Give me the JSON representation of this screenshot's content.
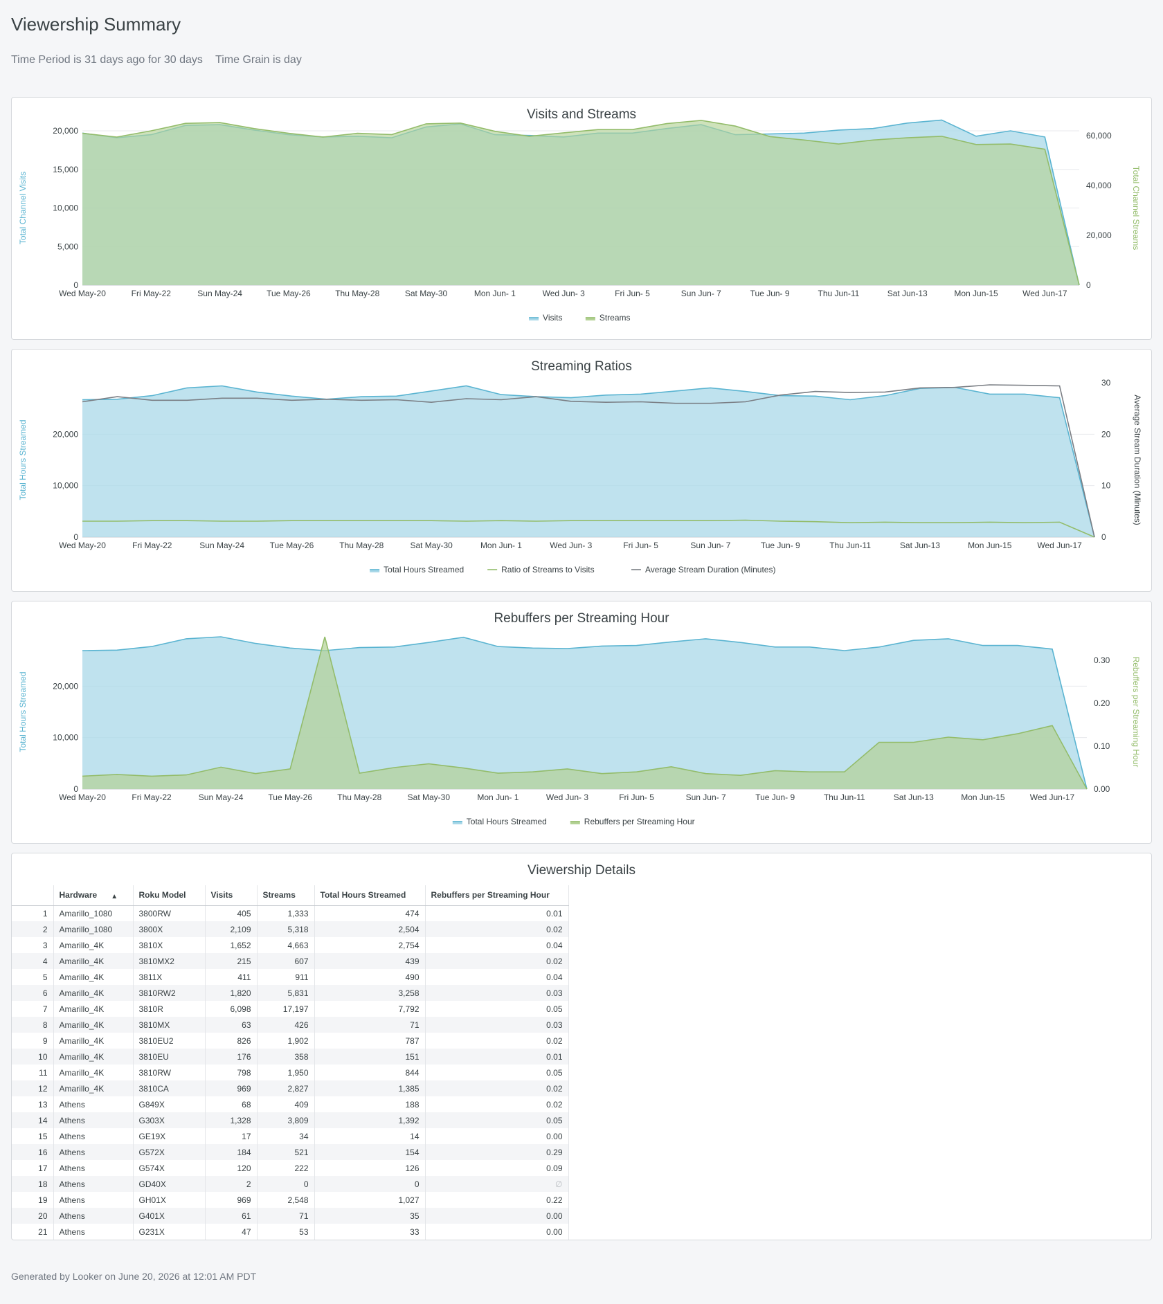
{
  "page": {
    "title": "Viewership Summary",
    "filters": [
      "Time Period is 31 days ago for 30 days",
      "Time Grain is day"
    ],
    "footer": "Generated by Looker on June 20, 2026 at 12:01 AM PDT"
  },
  "colors": {
    "blue": "#5ab4d1",
    "blue_fill": "#a9d8e8",
    "green": "#93bc6a",
    "green_fill": "#b4d296",
    "gray": "#7a7e84"
  },
  "chart_data": [
    {
      "type": "area",
      "title": "Visits and Streams",
      "x": [
        "Wed May-20",
        "Thu May-21",
        "Fri May-22",
        "Sat May-23",
        "Sun May-24",
        "Mon May-25",
        "Tue May-26",
        "Wed May-27",
        "Thu May-28",
        "Fri May-29",
        "Sat May-30",
        "Sun May-31",
        "Mon Jun- 1",
        "Tue Jun- 2",
        "Wed Jun- 3",
        "Thu Jun- 4",
        "Fri Jun- 5",
        "Sat Jun- 6",
        "Sun Jun- 7",
        "Mon Jun- 8",
        "Tue Jun- 9",
        "Wed Jun-10",
        "Thu Jun-11",
        "Fri Jun-12",
        "Sat Jun-13",
        "Sun Jun-14",
        "Mon Jun-15",
        "Tue Jun-16",
        "Wed Jun-17",
        "Thu Jun-18"
      ],
      "x_tick_labels": [
        "Wed May-20",
        "Fri May-22",
        "Sun May-24",
        "Tue May-26",
        "Thu May-28",
        "Sat May-30",
        "Mon Jun- 1",
        "Wed Jun- 3",
        "Fri Jun- 5",
        "Sun Jun- 7",
        "Tue Jun- 9",
        "Thu Jun-11",
        "Sat Jun-13",
        "Mon Jun-15",
        "Wed Jun-17"
      ],
      "ylabel": "Total Channel Visits",
      "ylabel2": "Total Channel Streams",
      "ylim": [
        0,
        20000
      ],
      "y_ticks": [
        0,
        5000,
        10000,
        15000,
        20000
      ],
      "y_tick_labels": [
        "0",
        "5,000",
        "10,000",
        "15,000",
        "20,000"
      ],
      "y2lim": [
        0,
        62000
      ],
      "y2_ticks": [
        0,
        20000,
        40000,
        60000
      ],
      "y2_tick_labels": [
        "0",
        "20,000",
        "40,000",
        "60,000"
      ],
      "legend": "bottom",
      "series": [
        {
          "name": "Visits",
          "axis": "left",
          "values": [
            19700,
            19100,
            19500,
            20700,
            20800,
            20100,
            19500,
            19200,
            19300,
            19100,
            20500,
            20900,
            19500,
            19400,
            19200,
            19700,
            19700,
            20300,
            20800,
            19500,
            19600,
            19700,
            20100,
            20300,
            21000,
            21400,
            19300,
            20000,
            19200,
            0
          ]
        },
        {
          "name": "Streams",
          "axis": "right",
          "values": [
            61000,
            59500,
            62000,
            65000,
            65300,
            62900,
            61000,
            59500,
            61000,
            60500,
            64800,
            65100,
            61800,
            59800,
            61200,
            62500,
            62500,
            64900,
            66200,
            63900,
            59700,
            58300,
            56700,
            58300,
            59200,
            59800,
            56500,
            56700,
            54600,
            0
          ]
        }
      ]
    },
    {
      "type": "area",
      "title": "Streaming Ratios",
      "x_tick_labels": [
        "Wed May-20",
        "Fri May-22",
        "Sun May-24",
        "Tue May-26",
        "Thu May-28",
        "Sat May-30",
        "Mon Jun- 1",
        "Wed Jun- 3",
        "Fri Jun- 5",
        "Sun Jun- 7",
        "Tue Jun- 9",
        "Thu Jun-11",
        "Sat Jun-13",
        "Mon Jun-15",
        "Wed Jun-17"
      ],
      "ylabel": "Total Hours Streamed",
      "ylabel2": "Average Stream Duration (Minutes)",
      "ylim": [
        0,
        30000
      ],
      "y_ticks": [
        0,
        10000,
        20000
      ],
      "y_tick_labels": [
        "0",
        "10,000",
        "20,000"
      ],
      "y2lim": [
        0,
        30
      ],
      "y2_ticks": [
        0,
        10,
        20,
        30
      ],
      "y2_tick_labels": [
        "0",
        "10",
        "20",
        "30"
      ],
      "legend": "bottom",
      "series": [
        {
          "name": "Total Hours Streamed",
          "axis": "left",
          "values": [
            26700,
            26800,
            27500,
            29000,
            29400,
            28200,
            27400,
            26800,
            27300,
            27400,
            28400,
            29400,
            27700,
            27300,
            27100,
            27600,
            27800,
            28400,
            29000,
            28300,
            27500,
            27400,
            26700,
            27500,
            28900,
            29100,
            27800,
            27800,
            27100,
            0
          ]
        },
        {
          "name": "Ratio of Streams to Visits",
          "axis": "right",
          "values": [
            3.1,
            3.1,
            3.2,
            3.2,
            3.1,
            3.1,
            3.2,
            3.2,
            3.2,
            3.2,
            3.2,
            3.1,
            3.2,
            3.1,
            3.2,
            3.2,
            3.2,
            3.2,
            3.2,
            3.3,
            3.1,
            3.0,
            2.8,
            2.9,
            2.8,
            2.8,
            2.9,
            2.8,
            2.9,
            0
          ]
        },
        {
          "name": "Average Stream Duration (Minutes)",
          "axis": "right",
          "values": [
            26.3,
            27.3,
            26.6,
            26.6,
            27.0,
            27.0,
            26.6,
            26.8,
            26.6,
            26.7,
            26.2,
            26.9,
            26.7,
            27.3,
            26.4,
            26.2,
            26.3,
            26.0,
            26.0,
            26.3,
            27.6,
            28.3,
            28.1,
            28.2,
            29.0,
            29.1,
            29.6,
            29.5,
            29.4,
            0
          ]
        }
      ]
    },
    {
      "type": "area",
      "title": "Rebuffers per Streaming Hour",
      "x_tick_labels": [
        "Wed May-20",
        "Fri May-22",
        "Sun May-24",
        "Tue May-26",
        "Thu May-28",
        "Sat May-30",
        "Mon Jun- 1",
        "Wed Jun- 3",
        "Fri Jun- 5",
        "Sun Jun- 7",
        "Tue Jun- 9",
        "Thu Jun-11",
        "Sat Jun-13",
        "Mon Jun-15",
        "Wed Jun-17"
      ],
      "ylabel": "Total Hours Streamed",
      "ylabel2": "Rebuffers per Streaming Hour",
      "ylim": [
        0,
        30000
      ],
      "y_ticks": [
        0,
        10000,
        20000
      ],
      "y_tick_labels": [
        "0",
        "10,000",
        "20,000"
      ],
      "y2lim": [
        0,
        0.36
      ],
      "y2_ticks": [
        0,
        0.1,
        0.2,
        0.3
      ],
      "y2_tick_labels": [
        "0.00",
        "0.10",
        "0.20",
        "0.30"
      ],
      "legend": "bottom",
      "series": [
        {
          "name": "Total Hours Streamed",
          "axis": "left",
          "values": [
            26900,
            27000,
            27700,
            29200,
            29600,
            28300,
            27400,
            26900,
            27500,
            27600,
            28500,
            29500,
            27700,
            27400,
            27300,
            27800,
            27900,
            28600,
            29200,
            28500,
            27600,
            27600,
            26900,
            27600,
            28900,
            29200,
            27900,
            27900,
            27200,
            0
          ]
        },
        {
          "name": "Rebuffers per Streaming Hour",
          "axis": "right",
          "values": [
            0.03,
            0.034,
            0.03,
            0.033,
            0.051,
            0.036,
            0.047,
            0.355,
            0.037,
            0.05,
            0.059,
            0.049,
            0.037,
            0.04,
            0.047,
            0.036,
            0.04,
            0.052,
            0.036,
            0.032,
            0.043,
            0.04,
            0.04,
            0.109,
            0.109,
            0.121,
            0.115,
            0.129,
            0.148,
            0
          ]
        }
      ]
    }
  ],
  "table": {
    "title": "Viewership Details",
    "columns": [
      "Hardware",
      "Roku Model",
      "Visits",
      "Streams",
      "Total Hours Streamed",
      "Rebuffers per Streaming Hour"
    ],
    "null_symbol": "∅",
    "rows": [
      [
        "1",
        "Amarillo_1080",
        "3800RW",
        "405",
        "1,333",
        "474",
        "0.01"
      ],
      [
        "2",
        "Amarillo_1080",
        "3800X",
        "2,109",
        "5,318",
        "2,504",
        "0.02"
      ],
      [
        "3",
        "Amarillo_4K",
        "3810X",
        "1,652",
        "4,663",
        "2,754",
        "0.04"
      ],
      [
        "4",
        "Amarillo_4K",
        "3810MX2",
        "215",
        "607",
        "439",
        "0.02"
      ],
      [
        "5",
        "Amarillo_4K",
        "3811X",
        "411",
        "911",
        "490",
        "0.04"
      ],
      [
        "6",
        "Amarillo_4K",
        "3810RW2",
        "1,820",
        "5,831",
        "3,258",
        "0.03"
      ],
      [
        "7",
        "Amarillo_4K",
        "3810R",
        "6,098",
        "17,197",
        "7,792",
        "0.05"
      ],
      [
        "8",
        "Amarillo_4K",
        "3810MX",
        "63",
        "426",
        "71",
        "0.03"
      ],
      [
        "9",
        "Amarillo_4K",
        "3810EU2",
        "826",
        "1,902",
        "787",
        "0.02"
      ],
      [
        "10",
        "Amarillo_4K",
        "3810EU",
        "176",
        "358",
        "151",
        "0.01"
      ],
      [
        "11",
        "Amarillo_4K",
        "3810RW",
        "798",
        "1,950",
        "844",
        "0.05"
      ],
      [
        "12",
        "Amarillo_4K",
        "3810CA",
        "969",
        "2,827",
        "1,385",
        "0.02"
      ],
      [
        "13",
        "Athens",
        "G849X",
        "68",
        "409",
        "188",
        "0.02"
      ],
      [
        "14",
        "Athens",
        "G303X",
        "1,328",
        "3,809",
        "1,392",
        "0.05"
      ],
      [
        "15",
        "Athens",
        "GE19X",
        "17",
        "34",
        "14",
        "0.00"
      ],
      [
        "16",
        "Athens",
        "G572X",
        "184",
        "521",
        "154",
        "0.29"
      ],
      [
        "17",
        "Athens",
        "G574X",
        "120",
        "222",
        "126",
        "0.09"
      ],
      [
        "18",
        "Athens",
        "GD40X",
        "2",
        "0",
        "0",
        ""
      ],
      [
        "19",
        "Athens",
        "GH01X",
        "969",
        "2,548",
        "1,027",
        "0.22"
      ],
      [
        "20",
        "Athens",
        "G401X",
        "61",
        "71",
        "35",
        "0.00"
      ],
      [
        "21",
        "Athens",
        "G231X",
        "47",
        "53",
        "33",
        "0.00"
      ]
    ]
  }
}
